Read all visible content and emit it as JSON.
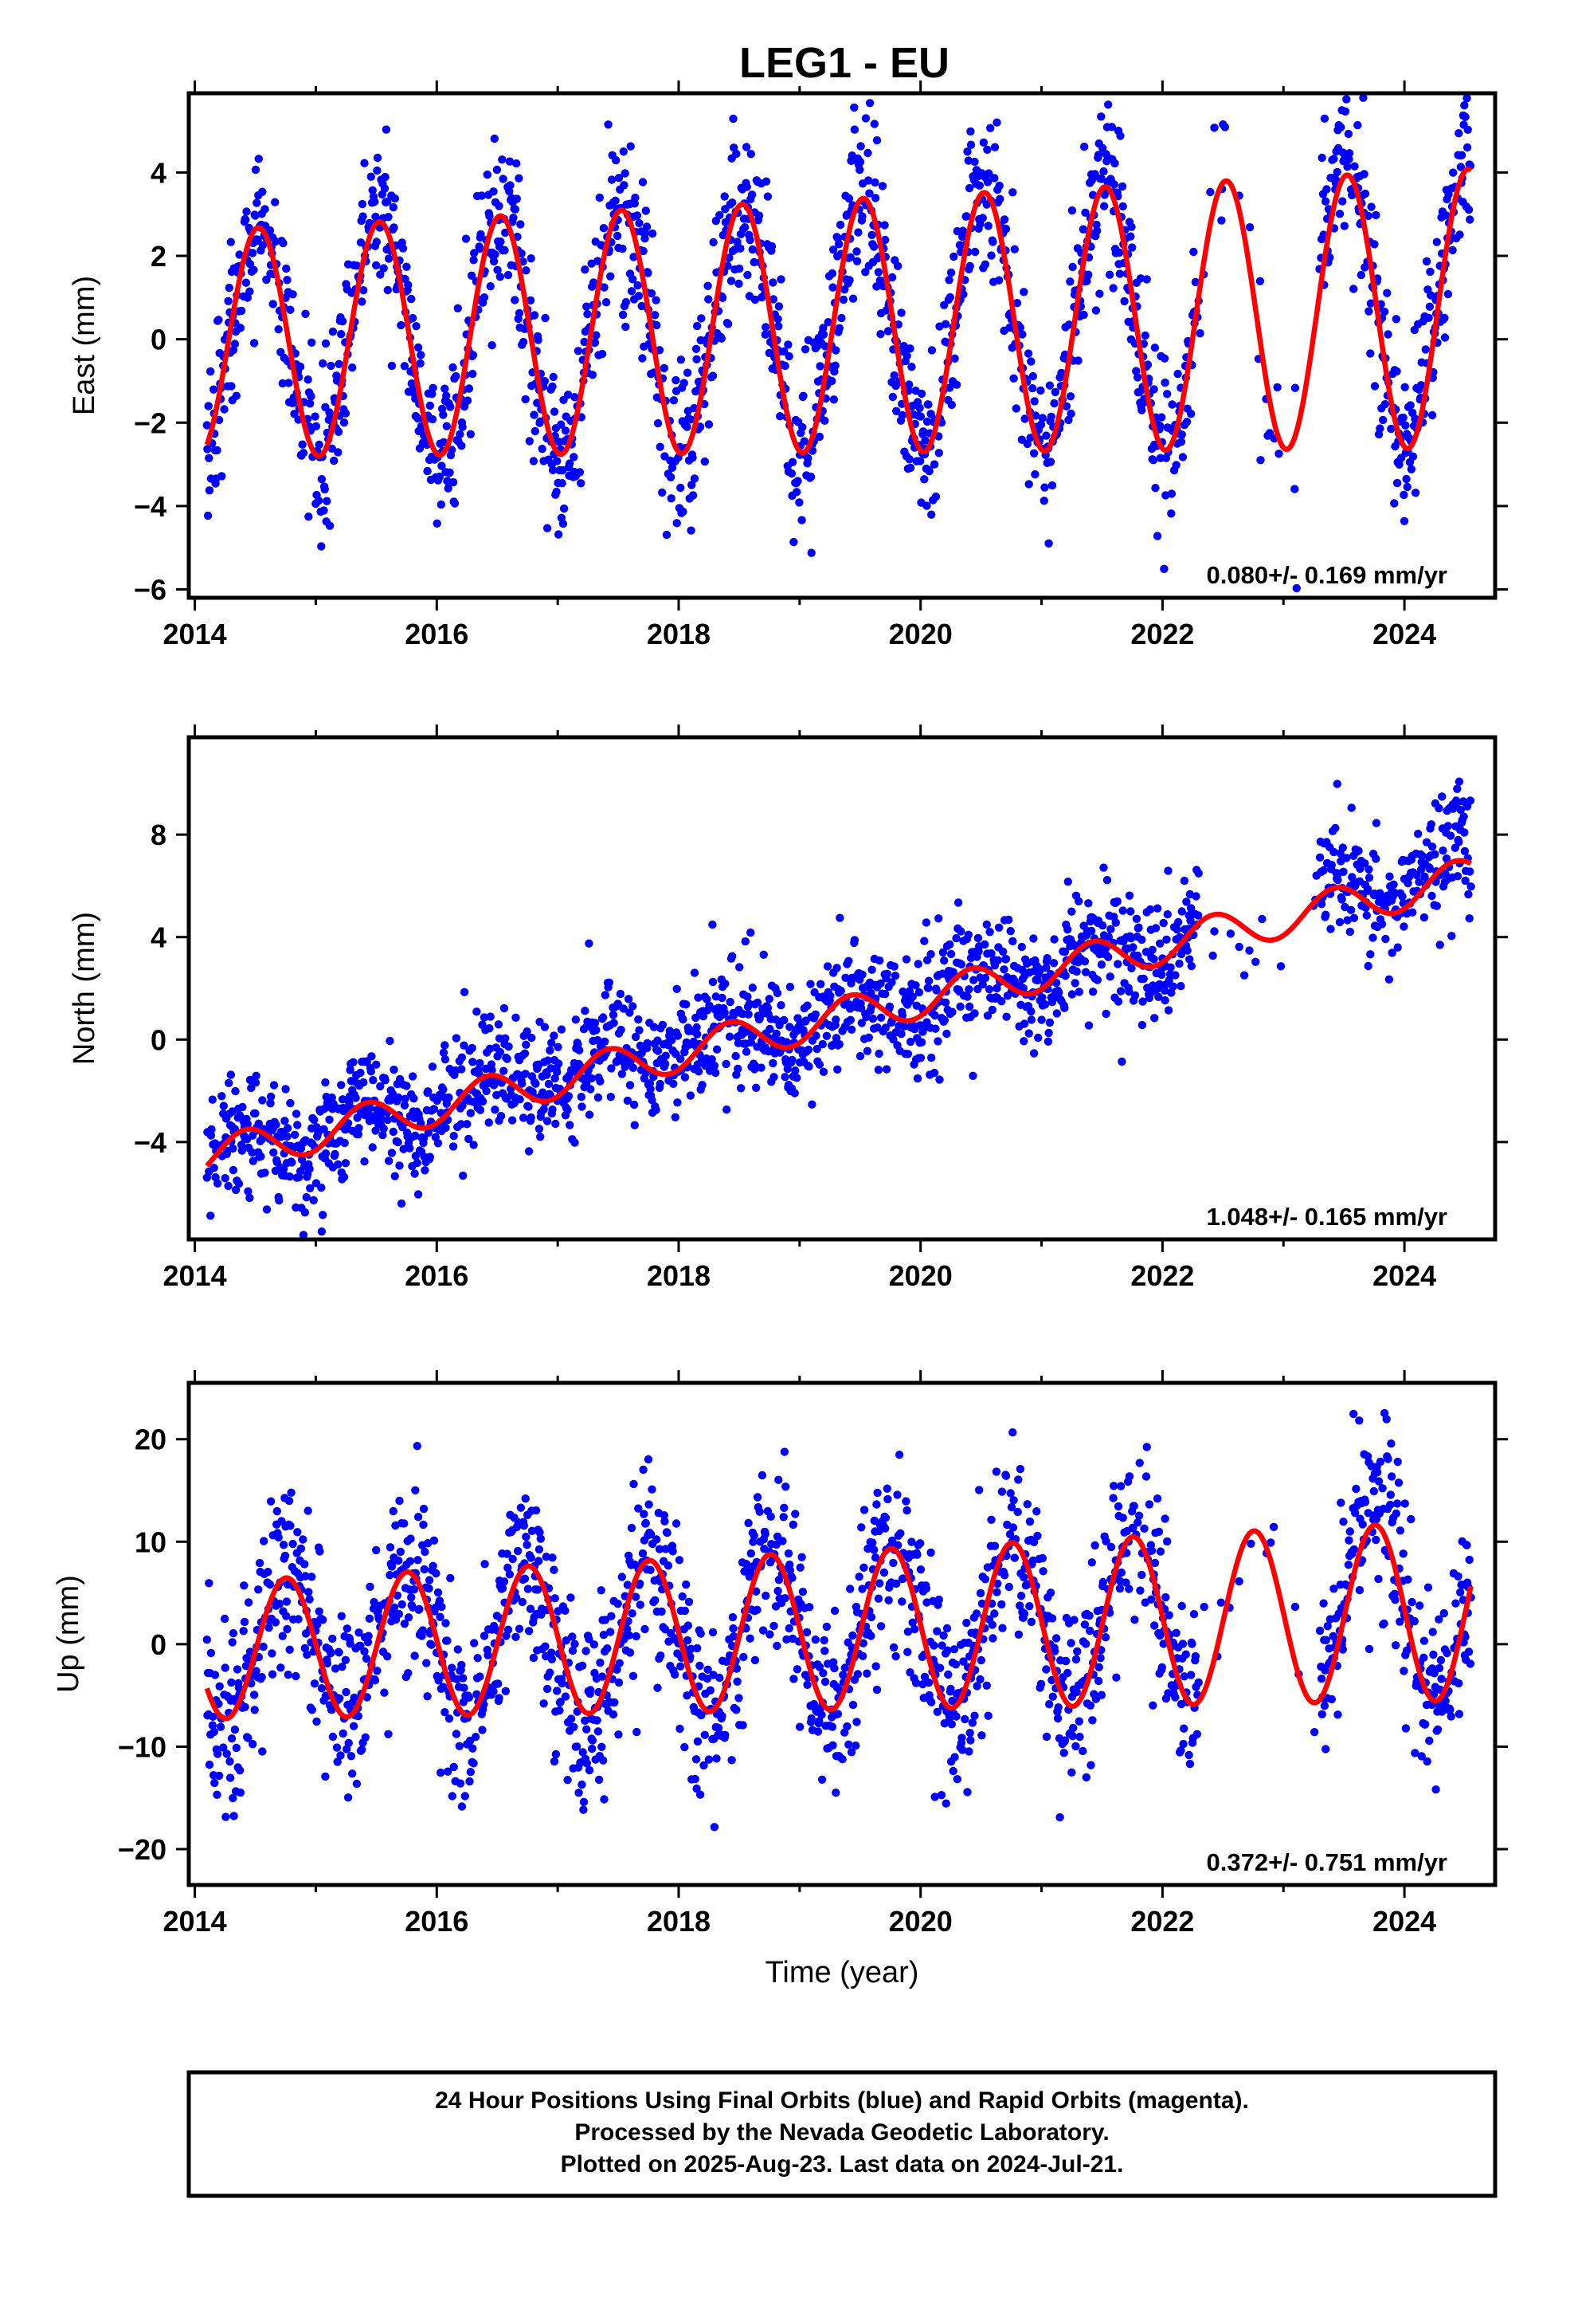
{
  "chart_data": [
    {
      "type": "scatter",
      "title": "LEG1 - EU",
      "ylabel": "East (mm)",
      "xlim": [
        2013.95,
        2024.75
      ],
      "ylim": [
        -6.2,
        5.9
      ],
      "xticks": [
        2014,
        2016,
        2018,
        2020,
        2022,
        2024
      ],
      "yticks": [
        -6,
        -4,
        -2,
        0,
        2,
        4
      ],
      "yticklabels": [
        "−6",
        "−4",
        "−2",
        "0",
        "2",
        "4"
      ],
      "rate_text": "0.080+/- 0.169 mm/yr",
      "trend": {
        "start_year": 2014.1,
        "end_year": 2024.55,
        "offset_at_start": -0.1,
        "rate": 0.08,
        "annual_amplitude": 2.72,
        "amplitude_change": 0.06,
        "annual_phase": 4.55,
        "semiannual_amplitude": 0.0,
        "semiannual_phase": 0.0
      },
      "series": [
        {
          "name": "Final Orbits",
          "color": "#0000ff",
          "points": "daily positions scattered ~1.1 mm about the red model, gap 2022.3–2023.3"
        },
        {
          "name": "Model",
          "color": "#ff0000"
        }
      ]
    },
    {
      "type": "scatter",
      "title": "",
      "ylabel": "North (mm)",
      "xlim": [
        2013.95,
        2024.75
      ],
      "ylim": [
        -7.8,
        11.8
      ],
      "xticks": [
        2014,
        2016,
        2018,
        2020,
        2022,
        2024
      ],
      "yticks": [
        -4,
        0,
        4,
        8
      ],
      "yticklabels": [
        "−4",
        "0",
        "4",
        "8"
      ],
      "rate_text": "1.048+/- 0.165 mm/yr",
      "trend": {
        "start_year": 2014.1,
        "end_year": 2024.55,
        "offset_at_start": -4.6,
        "rate": 1.048,
        "annual_amplitude": 0.75,
        "amplitude_change": 0.0,
        "annual_phase": 5.2,
        "semiannual_amplitude": 0.0,
        "semiannual_phase": 0.0
      },
      "series": [
        {
          "name": "Final Orbits",
          "color": "#0000ff"
        },
        {
          "name": "Model",
          "color": "#ff0000"
        }
      ]
    },
    {
      "type": "scatter",
      "title": "",
      "ylabel": "Up (mm)",
      "xlabel": "Time (year)",
      "xlim": [
        2013.95,
        2024.75
      ],
      "ylim": [
        -23.5,
        25.5
      ],
      "xticks": [
        2014,
        2016,
        2018,
        2020,
        2022,
        2024
      ],
      "yticks": [
        -20,
        -10,
        0,
        10,
        20
      ],
      "yticklabels": [
        "−20",
        "−10",
        "0",
        "10",
        "20"
      ],
      "rate_text": "0.372+/- 0.751 mm/yr",
      "trend": {
        "start_year": 2014.1,
        "end_year": 2024.55,
        "offset_at_start": -0.6,
        "rate": 0.372,
        "annual_amplitude": 6.7,
        "amplitude_change": 0.2,
        "annual_phase": 3.1,
        "semiannual_amplitude": 0.0,
        "semiannual_phase": 0.0
      },
      "series": [
        {
          "name": "Final Orbits",
          "color": "#0000ff"
        },
        {
          "name": "Model",
          "color": "#ff0000"
        }
      ]
    }
  ],
  "footer": {
    "line1": "24 Hour Positions Using Final Orbits (blue) and Rapid Orbits (magenta).",
    "line2": "Processed by the Nevada Geodetic Laboratory.",
    "line3": "Plotted on 2025-Aug-23. Last data on 2024-Jul-21."
  }
}
